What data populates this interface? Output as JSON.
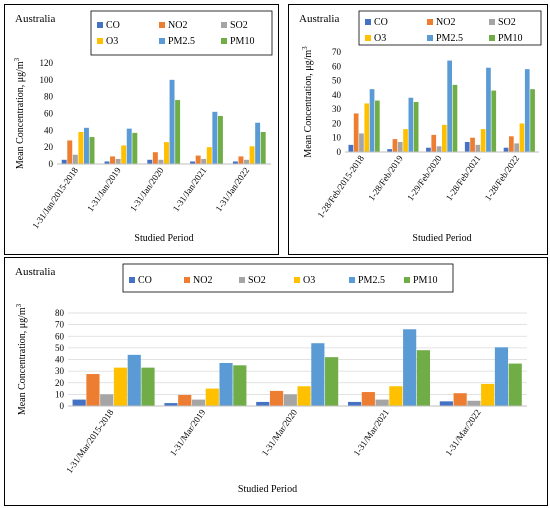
{
  "colors": {
    "CO": "#4472c4",
    "NO2": "#ed7d31",
    "SO2": "#a5a5a5",
    "O3": "#ffc000",
    "PM2.5": "#5b9bd5",
    "PM10": "#70ad47"
  },
  "chart_data": [
    {
      "type": "bar",
      "title": "Australia",
      "xlabel": "Studied Period",
      "ylabel": "Mean Concentration, μg/m",
      "ylabel_sup": "3",
      "ylim": [
        0,
        120
      ],
      "yticks": [
        "0",
        "20",
        "40",
        "60",
        "80",
        "100",
        "120"
      ],
      "grid": false,
      "legend_position": "top-right",
      "categories": [
        "1-31/Jan/2015-2018",
        "1-31/Jan/2019",
        "1-31/Jan/2020",
        "1-31/Jan/2021",
        "1-31/Jan/2022"
      ],
      "series": [
        {
          "name": "CO",
          "values": [
            5,
            3,
            5,
            3,
            3
          ]
        },
        {
          "name": "NO2",
          "values": [
            28,
            9,
            14,
            10,
            9
          ]
        },
        {
          "name": "SO2",
          "values": [
            11,
            6,
            5,
            6,
            5
          ]
        },
        {
          "name": "O3",
          "values": [
            38,
            22,
            26,
            20,
            21
          ]
        },
        {
          "name": "PM2.5",
          "values": [
            43,
            42,
            100,
            62,
            49
          ]
        },
        {
          "name": "PM10",
          "values": [
            32,
            37,
            76,
            57,
            38
          ]
        }
      ]
    },
    {
      "type": "bar",
      "title": "Australia",
      "xlabel": "Studied Period",
      "ylabel": "Mean Concentration, μg/m",
      "ylabel_sup": "3",
      "ylim": [
        0,
        70
      ],
      "yticks": [
        "0",
        "10",
        "20",
        "30",
        "40",
        "50",
        "60",
        "70"
      ],
      "grid": false,
      "legend_position": "top-right",
      "categories": [
        "1-28/Feb/2015-2018",
        "1-28/Feb/2019",
        "1-29/Feb/2020",
        "1-28/Feb/2021",
        "1-28/Feb/2022"
      ],
      "series": [
        {
          "name": "CO",
          "values": [
            5,
            2,
            3,
            7,
            3
          ]
        },
        {
          "name": "NO2",
          "values": [
            27,
            9,
            12,
            10,
            11
          ]
        },
        {
          "name": "SO2",
          "values": [
            13,
            7,
            4,
            5,
            6
          ]
        },
        {
          "name": "O3",
          "values": [
            34,
            16,
            19,
            16,
            20
          ]
        },
        {
          "name": "PM2.5",
          "values": [
            44,
            38,
            64,
            59,
            58
          ]
        },
        {
          "name": "PM10",
          "values": [
            36,
            35,
            47,
            43,
            44
          ]
        }
      ]
    },
    {
      "type": "bar",
      "title": "Australia",
      "xlabel": "Studied Period",
      "ylabel": "Mean Concentration, μg/m",
      "ylabel_sup": "3",
      "ylim": [
        0,
        80
      ],
      "yticks": [
        "0",
        "10",
        "20",
        "30",
        "40",
        "50",
        "60",
        "70",
        "80"
      ],
      "grid": true,
      "legend_position": "top-center",
      "categories": [
        "1-31/Mar/2015-2018",
        "1-31/Mar/2019",
        "1-31/Mar/2020",
        "1-31/Mar/2021",
        "1-31/Mar/2022"
      ],
      "series": [
        {
          "name": "CO",
          "values": [
            5.5,
            2.5,
            3.5,
            3.5,
            4
          ]
        },
        {
          "name": "NO2",
          "values": [
            27.5,
            9.5,
            13,
            12,
            11
          ]
        },
        {
          "name": "SO2",
          "values": [
            10,
            5.5,
            10,
            5.5,
            4.5
          ]
        },
        {
          "name": "O3",
          "values": [
            33,
            15,
            17,
            17,
            19
          ]
        },
        {
          "name": "PM2.5",
          "values": [
            44,
            37,
            54,
            66,
            50.5
          ]
        },
        {
          "name": "PM10",
          "values": [
            33,
            35,
            42,
            48,
            36.5
          ]
        }
      ]
    }
  ]
}
